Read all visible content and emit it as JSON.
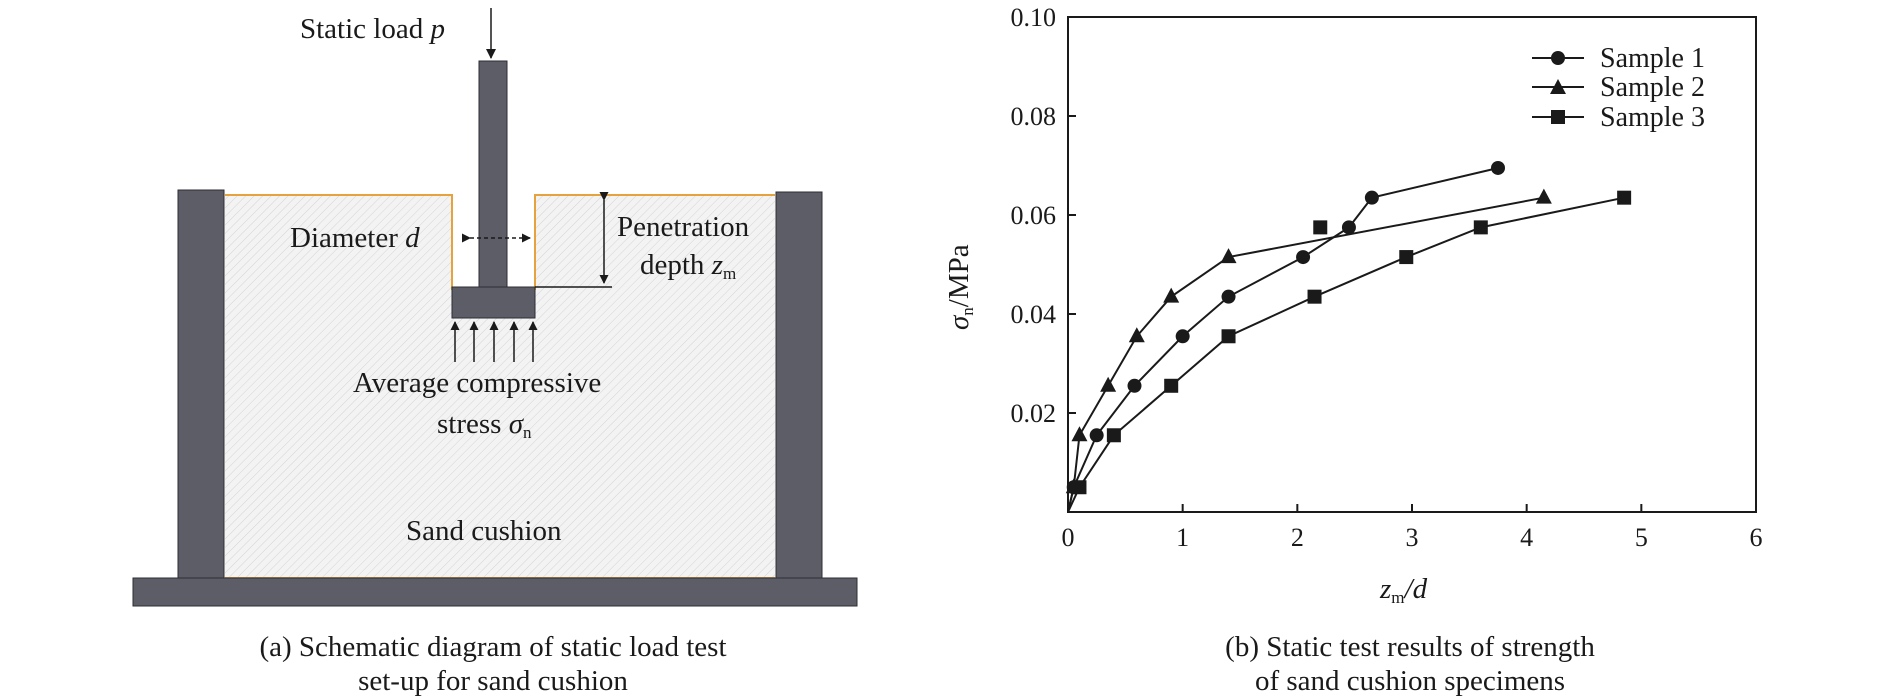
{
  "diagram": {
    "static_load": "Static load ",
    "static_load_sym": "p",
    "diameter": "Diameter ",
    "diameter_sym": "d",
    "penetration": "Penetration",
    "depth": "depth ",
    "depth_sym": "z",
    "depth_sub": "m",
    "avg_stress_1": "Average compressive",
    "avg_stress_2": "stress ",
    "stress_sym": "σ",
    "stress_sub": "n",
    "sand": "Sand cushion",
    "caption_line1": "(a) Schematic diagram of static load test",
    "caption_line2": "set-up for sand cushion",
    "colors": {
      "steel": "#5d5d67",
      "outline": "#e6a23c",
      "sand": "#f2f2f2"
    }
  },
  "chart_caption_line1": "(b) Static test results of strength",
  "chart_caption_line2": "of sand cushion specimens",
  "chart_data": {
    "type": "line",
    "xlabel_sym": "z",
    "xlabel_sub": "m",
    "xlabel_rest": "/d",
    "ylabel_sym": "σ",
    "ylabel_sub": "n",
    "ylabel_rest": "/MPa",
    "xlim": [
      0,
      6
    ],
    "ylim": [
      0,
      0.1
    ],
    "xticks": [
      0,
      1,
      2,
      3,
      4,
      5,
      6
    ],
    "xtick_labels": [
      "0",
      "1",
      "2",
      "3",
      "4",
      "5",
      "6"
    ],
    "yticks": [
      0.02,
      0.04,
      0.06,
      0.08,
      0.1
    ],
    "ytick_labels": [
      "0.02",
      "0.04",
      "0.06",
      "0.08",
      "0.10"
    ],
    "legend_position": "top-right",
    "series": [
      {
        "name": "Sample 1",
        "marker": "circle",
        "x": [
          0,
          0.05,
          0.25,
          0.58,
          1.0,
          1.4,
          2.05,
          2.45,
          2.65,
          3.75
        ],
        "y": [
          0.0,
          0.005,
          0.0155,
          0.0255,
          0.0355,
          0.0435,
          0.0515,
          0.0575,
          0.0635,
          0.0695
        ]
      },
      {
        "name": "Sample 2",
        "marker": "triangle",
        "x": [
          0,
          0.05,
          0.1,
          0.35,
          0.6,
          0.9,
          1.4,
          4.15
        ],
        "y": [
          0.0,
          0.005,
          0.0155,
          0.0255,
          0.0355,
          0.0435,
          0.0515,
          0.0635
        ]
      },
      {
        "name": "Sample 3",
        "marker": "square",
        "x": [
          0,
          0.1,
          0.4,
          0.9,
          1.4,
          2.15,
          2.95,
          3.6,
          4.85,
          2.2
        ],
        "y": [
          0.0,
          0.005,
          0.0155,
          0.0255,
          0.0355,
          0.0435,
          0.0515,
          0.0575,
          0.0635,
          0.0575
        ]
      }
    ]
  }
}
